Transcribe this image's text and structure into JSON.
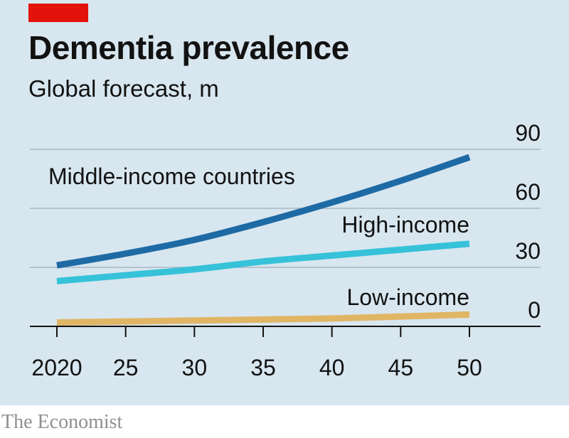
{
  "colors": {
    "background": "#d8e6ef",
    "accent_tag": "#e3120b",
    "gridline": "#a7b6c2",
    "axis": "#121212",
    "middle_income": "#1d6aa5",
    "high_income": "#36c2d9",
    "low_income": "#e0b665"
  },
  "source": "The Economist",
  "chart_data": {
    "type": "line",
    "title": "Dementia prevalence",
    "subtitle": "Global forecast, m",
    "xlabel": "",
    "ylabel": "",
    "x": [
      2020,
      2025,
      2030,
      2035,
      2040,
      2045,
      2050
    ],
    "x_tick_labels": [
      "2020",
      "25",
      "30",
      "35",
      "40",
      "45",
      "50"
    ],
    "y_ticks": [
      0,
      30,
      60,
      90
    ],
    "ylim": [
      0,
      90
    ],
    "xlim": [
      2020,
      2050
    ],
    "grid": true,
    "y_axis_side": "right",
    "series": [
      {
        "name": "Middle-income countries",
        "color": "#1d6aa5",
        "values": [
          31,
          37,
          44,
          53,
          63,
          74,
          86
        ]
      },
      {
        "name": "High-income",
        "color": "#36c2d9",
        "values": [
          23,
          26,
          29,
          33,
          36,
          39,
          42
        ]
      },
      {
        "name": "Low-income",
        "color": "#e0b665",
        "values": [
          2,
          2.5,
          3,
          3.5,
          4,
          5,
          6
        ]
      }
    ]
  }
}
